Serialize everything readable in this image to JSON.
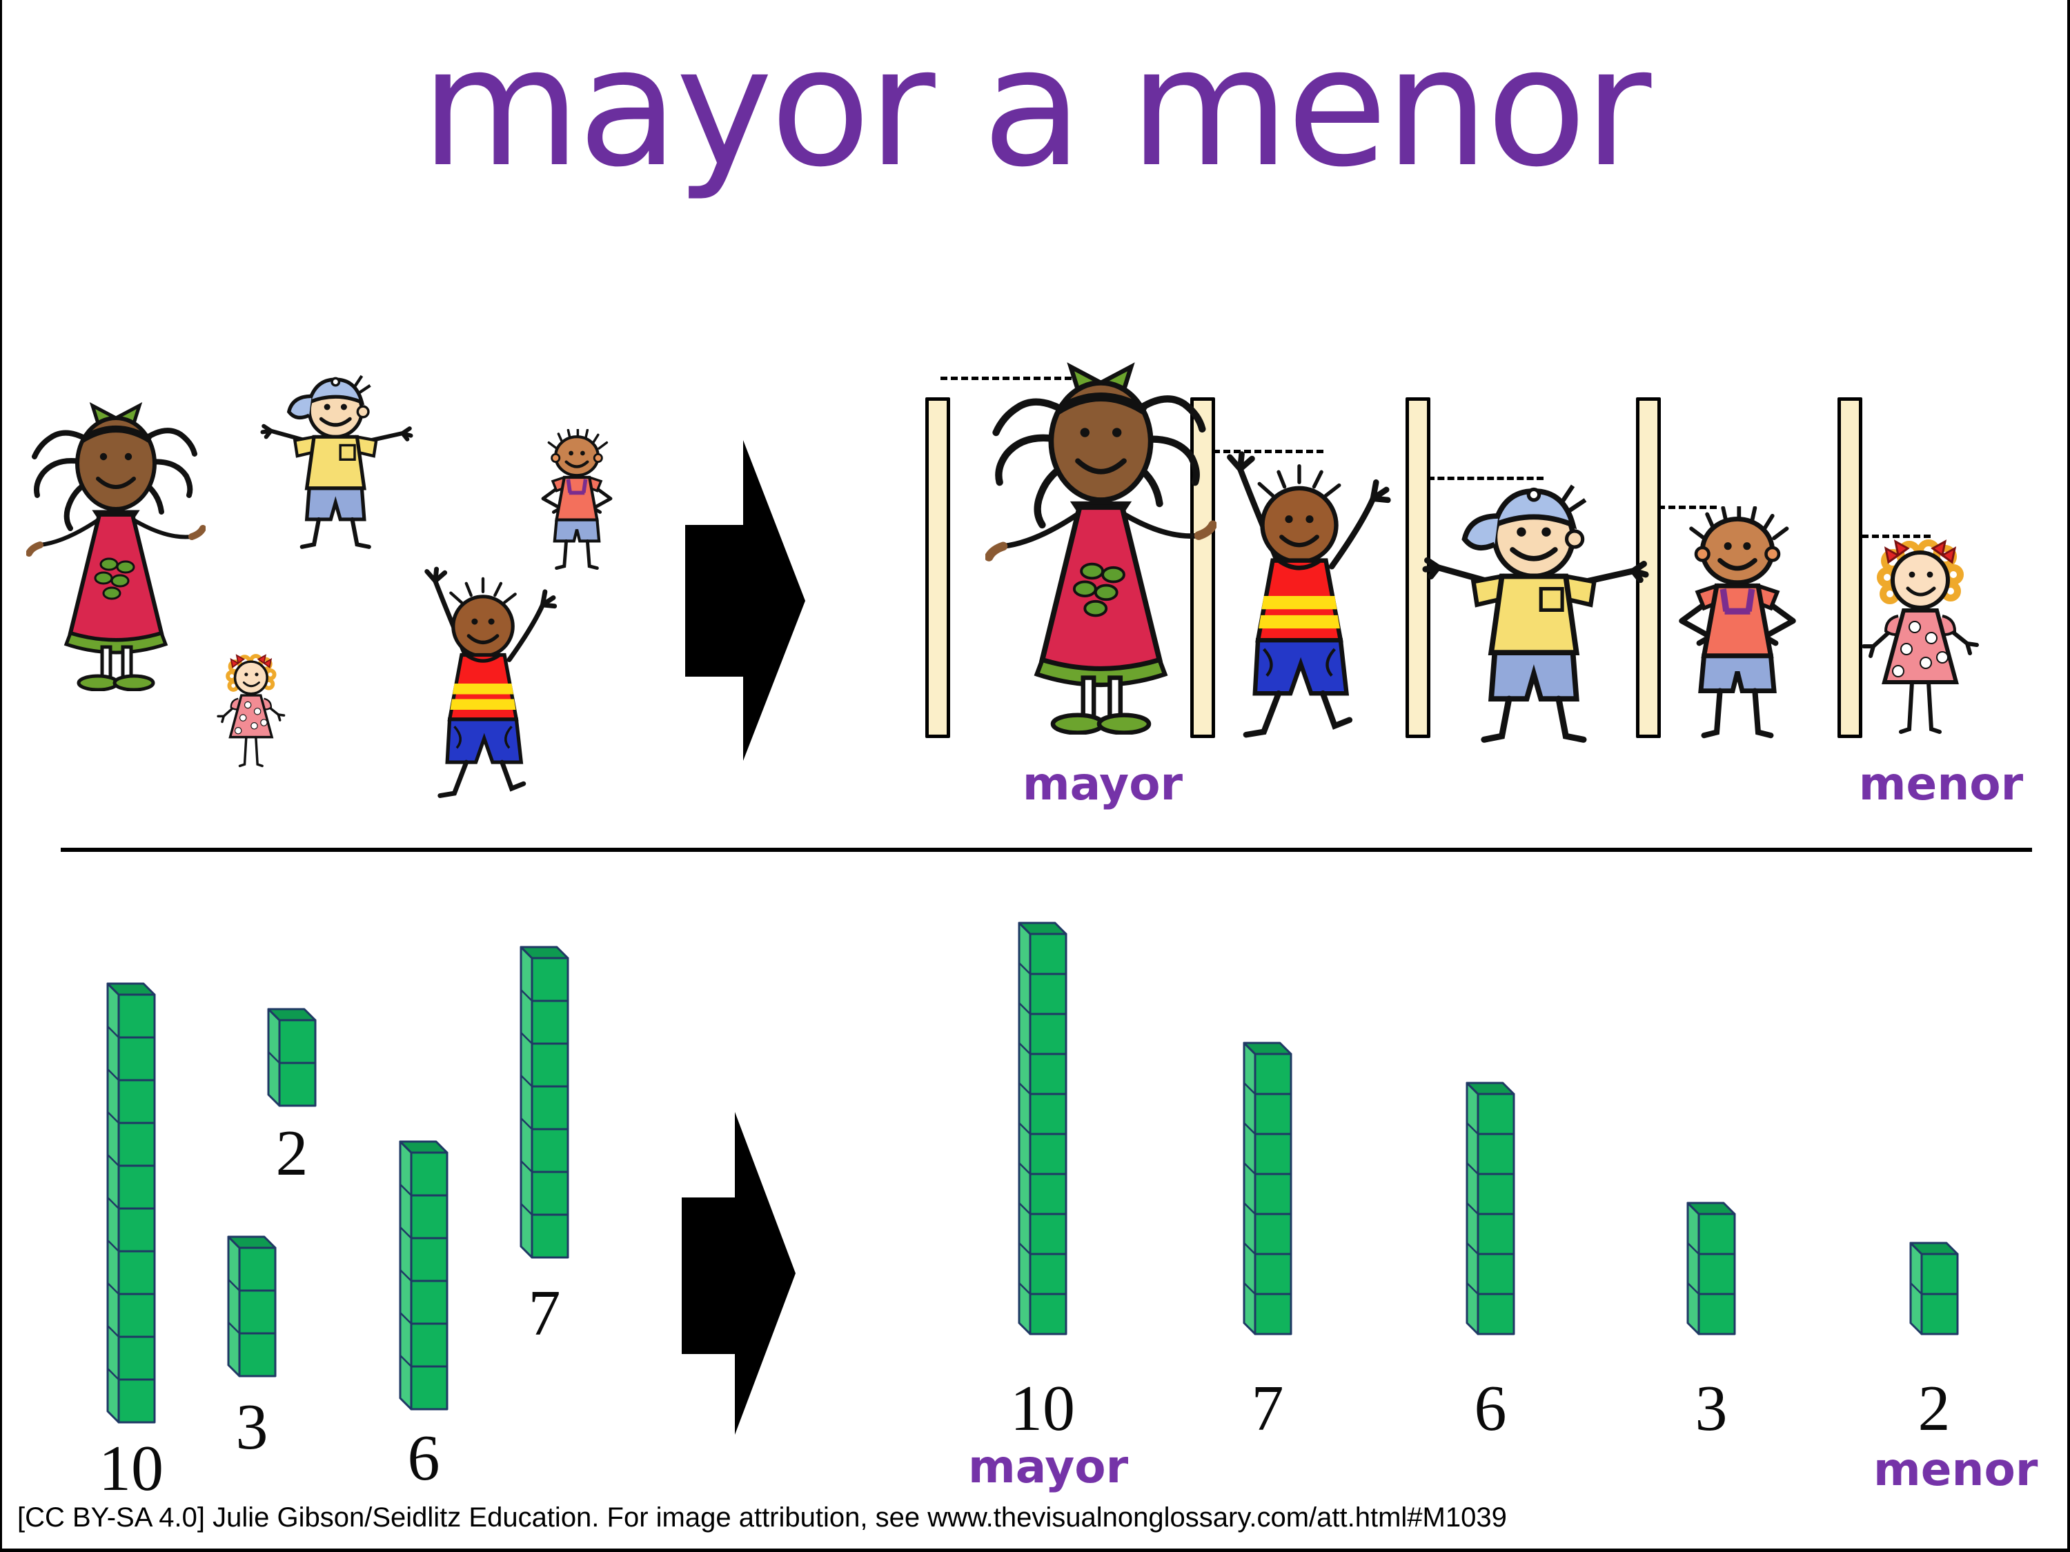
{
  "title": "mayor a menor",
  "palette": {
    "accent": "#6B2F9E",
    "label": "#7533A8",
    "cube_front": "#10B35C",
    "cube_side": "#45CB81",
    "cube_top": "#0E9A50",
    "cube_outline": "#1F3864",
    "stick_fill": "#FBEFC9",
    "arrow": "#000000"
  },
  "top": {
    "mayor_label": "mayor",
    "menor_label": "menor",
    "children_unordered": [
      "girl-red-dress",
      "boy-yellow-cap",
      "girl-pink-polka",
      "boy-waving-striped",
      "boy-salmon-shirt"
    ],
    "children_ordered_tall_to_short": [
      "girl-red-dress",
      "boy-waving-striped",
      "boy-yellow-cap",
      "boy-salmon-shirt",
      "girl-pink-polka"
    ]
  },
  "bottom": {
    "mayor_label": "mayor",
    "menor_label": "menor",
    "unordered_values": [
      10,
      2,
      3,
      6,
      7
    ],
    "ordered_values": [
      10,
      7,
      6,
      3,
      2
    ]
  },
  "attribution": "[CC BY-SA 4.0] Julie Gibson/Seidlitz Education.  For image attribution, see www.thevisualnonglossary.com/att.html#M1039"
}
